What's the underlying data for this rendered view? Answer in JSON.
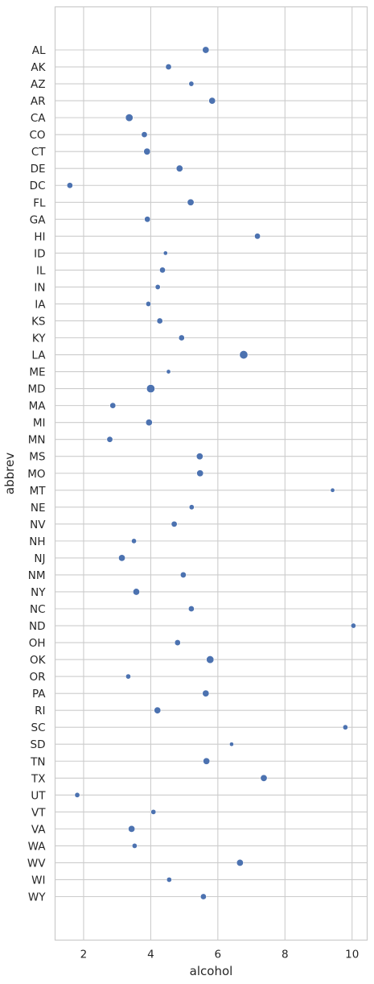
{
  "chart_data": {
    "type": "scatter",
    "xlabel": "alcohol",
    "ylabel": "abbrev",
    "xlim": [
      1.15,
      10.45
    ],
    "xticks": [
      2,
      4,
      6,
      8,
      10
    ],
    "grid": true,
    "marker_color": "#4c72b0",
    "categories": [
      "AL",
      "AK",
      "AZ",
      "AR",
      "CA",
      "CO",
      "CT",
      "DE",
      "DC",
      "FL",
      "GA",
      "HI",
      "ID",
      "IL",
      "IN",
      "IA",
      "KS",
      "KY",
      "LA",
      "ME",
      "MD",
      "MA",
      "MI",
      "MN",
      "MS",
      "MO",
      "MT",
      "NE",
      "NV",
      "NH",
      "NJ",
      "NM",
      "NY",
      "NC",
      "ND",
      "OH",
      "OK",
      "OR",
      "PA",
      "RI",
      "SC",
      "SD",
      "TN",
      "TX",
      "UT",
      "VT",
      "VA",
      "WA",
      "WV",
      "WI",
      "WY"
    ],
    "alcohol": [
      5.64,
      4.53,
      5.21,
      5.83,
      3.36,
      3.81,
      3.89,
      4.86,
      1.59,
      5.19,
      3.9,
      7.18,
      4.44,
      4.35,
      4.21,
      3.93,
      4.27,
      4.92,
      6.77,
      4.53,
      4.0,
      2.87,
      3.95,
      2.78,
      5.46,
      5.47,
      9.42,
      5.22,
      4.7,
      3.5,
      3.14,
      4.97,
      3.57,
      5.21,
      10.04,
      4.8,
      5.77,
      3.33,
      5.64,
      4.2,
      9.8,
      6.41,
      5.66,
      7.37,
      1.81,
      4.08,
      3.43,
      3.52,
      6.66,
      4.55,
      5.57
    ],
    "marker_size": [
      6,
      5,
      4,
      6,
      7,
      5,
      6,
      6,
      5,
      6,
      5,
      5,
      3,
      5,
      4,
      4,
      5,
      5,
      8,
      3,
      8,
      5,
      6,
      5,
      6,
      6,
      3,
      4,
      5,
      4,
      6,
      5,
      6,
      5,
      4,
      5,
      7,
      4,
      6,
      6,
      4,
      3,
      6,
      6,
      4,
      4,
      6,
      4,
      6,
      4,
      5
    ]
  }
}
